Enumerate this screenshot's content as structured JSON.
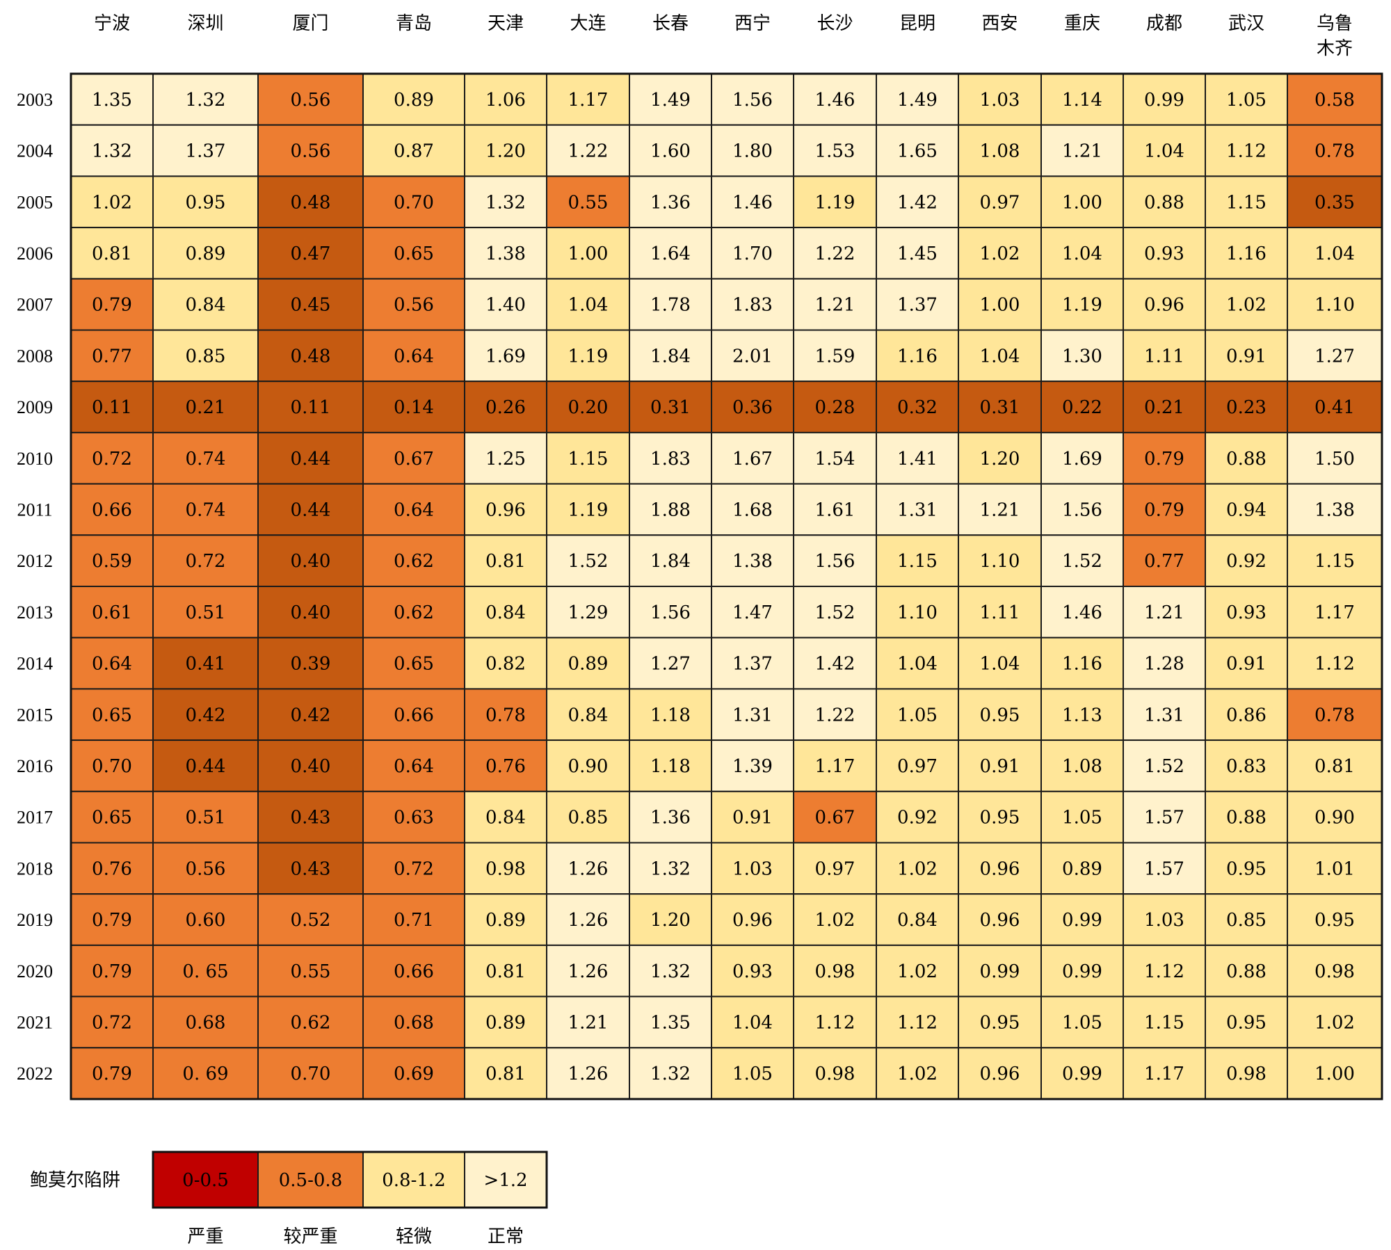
{
  "chart_data": {
    "type": "heatmap",
    "columns": [
      "宁波",
      "深圳",
      "厦门",
      "青岛",
      "天津",
      "大连",
      "长春",
      "西宁",
      "长沙",
      "昆明",
      "西安",
      "重庆",
      "成都",
      "武汉",
      "乌鲁木齐"
    ],
    "rows": [
      "2003",
      "2004",
      "2005",
      "2006",
      "2007",
      "2008",
      "2009",
      "2010",
      "2011",
      "2012",
      "2013",
      "2014",
      "2015",
      "2016",
      "2017",
      "2018",
      "2019",
      "2020",
      "2021",
      "2022"
    ],
    "values": [
      [
        "1.35",
        "1.32",
        "0.56",
        "0.89",
        "1.06",
        "1.17",
        "1.49",
        "1.56",
        "1.46",
        "1.49",
        "1.03",
        "1.14",
        "0.99",
        "1.05",
        "0.58"
      ],
      [
        "1.32",
        "1.37",
        "0.56",
        "0.87",
        "1.20",
        "1.22",
        "1.60",
        "1.80",
        "1.53",
        "1.65",
        "1.08",
        "1.21",
        "1.04",
        "1.12",
        "0.78"
      ],
      [
        "1.02",
        "0.95",
        "0.48",
        "0.70",
        "1.32",
        "0.55",
        "1.36",
        "1.46",
        "1.19",
        "1.42",
        "0.97",
        "1.00",
        "0.88",
        "1.15",
        "0.35"
      ],
      [
        "0.81",
        "0.89",
        "0.47",
        "0.65",
        "1.38",
        "1.00",
        "1.64",
        "1.70",
        "1.22",
        "1.45",
        "1.02",
        "1.04",
        "0.93",
        "1.16",
        "1.04"
      ],
      [
        "0.79",
        "0.84",
        "0.45",
        "0.56",
        "1.40",
        "1.04",
        "1.78",
        "1.83",
        "1.21",
        "1.37",
        "1.00",
        "1.19",
        "0.96",
        "1.02",
        "1.10"
      ],
      [
        "0.77",
        "0.85",
        "0.48",
        "0.64",
        "1.69",
        "1.19",
        "1.84",
        "2.01",
        "1.59",
        "1.16",
        "1.04",
        "1.30",
        "1.11",
        "0.91",
        "1.27"
      ],
      [
        "0.11",
        "0.21",
        "0.11",
        "0.14",
        "0.26",
        "0.20",
        "0.31",
        "0.36",
        "0.28",
        "0.32",
        "0.31",
        "0.22",
        "0.21",
        "0.23",
        "0.41"
      ],
      [
        "0.72",
        "0.74",
        "0.44",
        "0.67",
        "1.25",
        "1.15",
        "1.83",
        "1.67",
        "1.54",
        "1.41",
        "1.20",
        "1.69",
        "0.79",
        "0.88",
        "1.50"
      ],
      [
        "0.66",
        "0.74",
        "0.44",
        "0.64",
        "0.96",
        "1.19",
        "1.88",
        "1.68",
        "1.61",
        "1.31",
        "1.21",
        "1.56",
        "0.79",
        "0.94",
        "1.38"
      ],
      [
        "0.59",
        "0.72",
        "0.40",
        "0.62",
        "0.81",
        "1.52",
        "1.84",
        "1.38",
        "1.56",
        "1.15",
        "1.10",
        "1.52",
        "0.77",
        "0.92",
        "1.15"
      ],
      [
        "0.61",
        "0.51",
        "0.40",
        "0.62",
        "0.84",
        "1.29",
        "1.56",
        "1.47",
        "1.52",
        "1.10",
        "1.11",
        "1.46",
        "1.21",
        "0.93",
        "1.17"
      ],
      [
        "0.64",
        "0.41",
        "0.39",
        "0.65",
        "0.82",
        "0.89",
        "1.27",
        "1.37",
        "1.42",
        "1.04",
        "1.04",
        "1.16",
        "1.28",
        "0.91",
        "1.12"
      ],
      [
        "0.65",
        "0.42",
        "0.42",
        "0.66",
        "0.78",
        "0.84",
        "1.18",
        "1.31",
        "1.22",
        "1.05",
        "0.95",
        "1.13",
        "1.31",
        "0.86",
        "0.78"
      ],
      [
        "0.70",
        "0.44",
        "0.40",
        "0.64",
        "0.76",
        "0.90",
        "1.18",
        "1.39",
        "1.17",
        "0.97",
        "0.91",
        "1.08",
        "1.52",
        "0.83",
        "0.81"
      ],
      [
        "0.65",
        "0.51",
        "0.43",
        "0.63",
        "0.84",
        "0.85",
        "1.36",
        "0.91",
        "0.67",
        "0.92",
        "0.95",
        "1.05",
        "1.57",
        "0.88",
        "0.90"
      ],
      [
        "0.76",
        "0.56",
        "0.43",
        "0.72",
        "0.98",
        "1.26",
        "1.32",
        "1.03",
        "0.97",
        "1.02",
        "0.96",
        "0.89",
        "1.57",
        "0.95",
        "1.01"
      ],
      [
        "0.79",
        "0.60",
        "0.52",
        "0.71",
        "0.89",
        "1.26",
        "1.20",
        "0.96",
        "1.02",
        "0.84",
        "0.96",
        "0.99",
        "1.03",
        "0.85",
        "0.95"
      ],
      [
        "0.79",
        "0. 65",
        "0.55",
        "0.66",
        "0.81",
        "1.26",
        "1.32",
        "0.93",
        "0.98",
        "1.02",
        "0.99",
        "0.99",
        "1.12",
        "0.88",
        "0.98"
      ],
      [
        "0.72",
        "0.68",
        "0.62",
        "0.68",
        "0.89",
        "1.21",
        "1.35",
        "1.04",
        "1.12",
        "1.12",
        "0.95",
        "1.05",
        "1.15",
        "0.95",
        "1.02"
      ],
      [
        "0.79",
        "0. 69",
        "0.70",
        "0.69",
        "0.81",
        "1.26",
        "1.32",
        "1.05",
        "0.98",
        "1.02",
        "0.96",
        "0.99",
        "1.17",
        "0.98",
        "1.00"
      ]
    ],
    "legend": {
      "title": "鲍莫尔陷阱",
      "items": [
        {
          "range": "0-0.5",
          "label": "严重",
          "color": "#c00000"
        },
        {
          "range": "0.5-0.8",
          "label": "较严重",
          "color": "#ed7d31"
        },
        {
          "range": "0.8-1.2",
          "label": "轻微",
          "color": "#ffe699"
        },
        {
          "range": ">1.2",
          "label": "正常",
          "color": "#fff2cc"
        }
      ]
    },
    "cell_colors": {
      "severe": "#c55a11",
      "serious": "#ed7d31",
      "mild": "#ffe699",
      "normal": "#fff2cc"
    }
  }
}
